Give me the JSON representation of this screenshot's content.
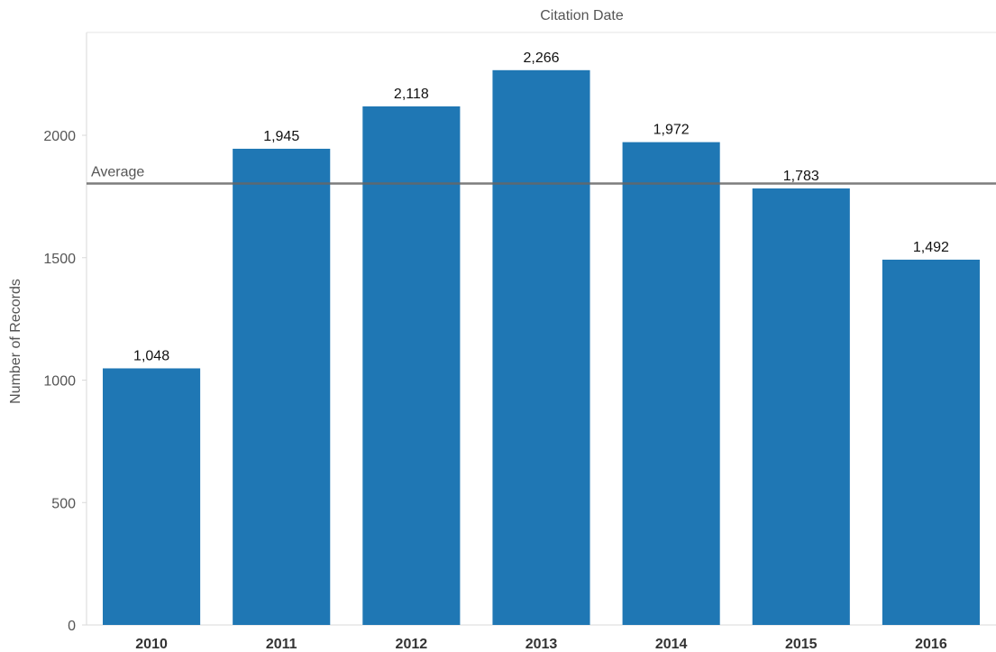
{
  "chart_data": {
    "type": "bar",
    "title": "Citation Date",
    "xlabel": "",
    "ylabel": "Number of Records",
    "categories": [
      "2010",
      "2011",
      "2012",
      "2013",
      "2014",
      "2015",
      "2016"
    ],
    "values": [
      1048,
      1945,
      2118,
      2266,
      1972,
      1783,
      1492
    ],
    "value_labels": [
      "1,048",
      "1,945",
      "2,118",
      "2,266",
      "1,972",
      "1,783",
      "1,492"
    ],
    "yticks": [
      0,
      500,
      1000,
      1500,
      2000
    ],
    "ylim": [
      0,
      2420
    ],
    "reference_line": {
      "label": "Average",
      "value": 1803
    },
    "bar_color": "#1f77b4",
    "reference_line_color": "#666666",
    "grid": false
  }
}
